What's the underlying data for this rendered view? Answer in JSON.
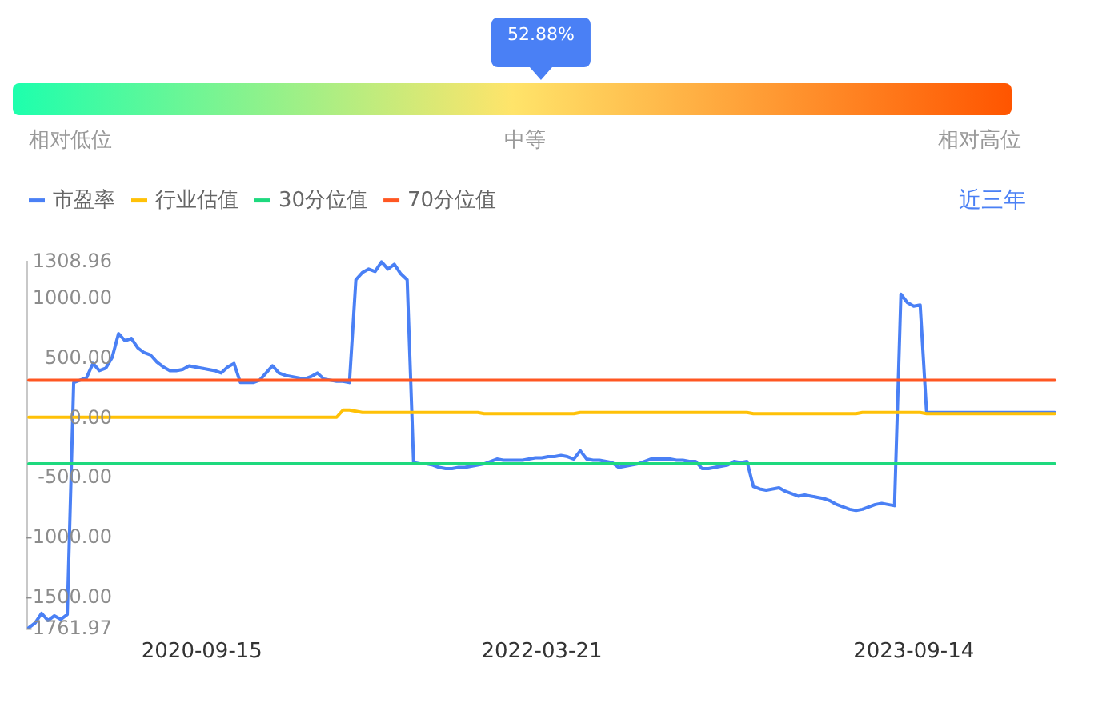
{
  "chart_data": [
    {
      "type": "other",
      "values": [
        52.88
      ],
      "value_labels": [
        "52.88%"
      ],
      "annotations": [
        "相对低位",
        "中等",
        "相对高位"
      ]
    },
    {
      "type": "line",
      "legend": "top left",
      "annotations": [
        "近三年"
      ],
      "ylim": [
        -1761.97,
        1308.96
      ],
      "yticks": [
        -1761.97,
        {
          "value": -1500,
          "label": "-1500.00"
        },
        {
          "value": -1000,
          "label": "-1000.00"
        },
        {
          "value": -500,
          "label": "-500.00"
        },
        {
          "value": 0,
          "label": "0.00"
        },
        {
          "value": 500,
          "label": "500.00"
        },
        {
          "value": 1000,
          "label": "1000.00"
        },
        1308.96
      ],
      "categories": [
        null,
        null,
        null,
        null,
        null,
        null,
        null,
        null,
        null,
        null,
        null,
        null,
        null,
        null,
        null,
        null,
        null,
        null,
        null,
        null,
        null,
        null,
        null,
        null,
        null,
        null,
        null,
        "2020-09-15",
        null,
        null,
        null,
        null,
        null,
        null,
        null,
        null,
        null,
        null,
        null,
        null,
        null,
        null,
        null,
        null,
        null,
        null,
        null,
        null,
        null,
        null,
        null,
        null,
        null,
        null,
        null,
        null,
        null,
        null,
        null,
        null,
        null,
        null,
        null,
        null,
        null,
        null,
        null,
        null,
        null,
        null,
        null,
        null,
        null,
        null,
        null,
        null,
        null,
        null,
        null,
        null,
        "2022-03-21",
        null,
        null,
        null,
        null,
        null,
        null,
        null,
        null,
        null,
        null,
        null,
        null,
        null,
        null,
        null,
        null,
        null,
        null,
        null,
        null,
        null,
        null,
        null,
        null,
        null,
        null,
        null,
        null,
        null,
        null,
        null,
        null,
        null,
        null,
        null,
        null,
        null,
        null,
        null,
        null,
        null,
        null,
        null,
        null,
        null,
        null,
        null,
        null,
        null,
        null,
        null,
        null,
        null,
        null,
        null,
        null,
        null,
        "2023-09-14",
        null,
        null,
        null,
        null,
        null,
        null,
        null,
        null,
        null,
        null,
        null,
        null,
        null,
        null,
        null,
        null,
        null,
        null,
        null,
        null,
        null,
        null
      ],
      "series": [
        {
          "name": "市盈率",
          "color": "#4a80f5",
          "values": [
            -1760,
            -1720,
            -1640,
            -1700,
            -1660,
            -1690,
            -1650,
            290,
            310,
            330,
            450,
            390,
            410,
            500,
            700,
            640,
            660,
            580,
            540,
            520,
            460,
            420,
            390,
            390,
            400,
            430,
            420,
            410,
            400,
            390,
            370,
            420,
            450,
            290,
            290,
            290,
            310,
            370,
            430,
            370,
            350,
            340,
            330,
            320,
            340,
            370,
            320,
            310,
            300,
            300,
            290,
            1150,
            1210,
            1240,
            1220,
            1300,
            1240,
            1280,
            1200,
            1150,
            -380,
            -390,
            -390,
            -400,
            -420,
            -430,
            -430,
            -420,
            -420,
            -410,
            -400,
            -390,
            -370,
            -350,
            -360,
            -360,
            -360,
            -360,
            -350,
            -340,
            -340,
            -330,
            -330,
            -320,
            -330,
            -350,
            -280,
            -350,
            -360,
            -360,
            -370,
            -380,
            -420,
            -410,
            -400,
            -390,
            -370,
            -350,
            -350,
            -350,
            -350,
            -360,
            -360,
            -370,
            -370,
            -430,
            -430,
            -420,
            -410,
            -400,
            -370,
            -380,
            -370,
            -580,
            -600,
            -610,
            -600,
            -590,
            -620,
            -640,
            -660,
            -650,
            -660,
            -670,
            -680,
            -700,
            -730,
            -750,
            -770,
            -780,
            -770,
            -750,
            -730,
            -720,
            -730,
            -740,
            1030,
            960,
            930,
            940,
            40,
            40,
            40,
            40,
            40,
            40,
            40,
            40,
            40,
            40,
            40,
            40,
            40,
            40,
            40,
            40,
            40,
            40,
            40,
            40,
            40
          ]
        },
        {
          "name": "行业估值",
          "color": "#ffc107",
          "values": [
            0,
            0,
            0,
            0,
            0,
            0,
            0,
            0,
            0,
            0,
            0,
            0,
            0,
            0,
            0,
            0,
            0,
            0,
            0,
            0,
            0,
            0,
            0,
            0,
            0,
            0,
            0,
            0,
            0,
            0,
            0,
            0,
            0,
            0,
            0,
            0,
            0,
            0,
            0,
            0,
            0,
            0,
            0,
            0,
            0,
            0,
            0,
            0,
            0,
            60,
            60,
            50,
            40,
            40,
            40,
            40,
            40,
            40,
            40,
            40,
            40,
            40,
            40,
            40,
            40,
            40,
            40,
            40,
            40,
            40,
            40,
            30,
            30,
            30,
            30,
            30,
            30,
            30,
            30,
            30,
            30,
            30,
            30,
            30,
            30,
            30,
            40,
            40,
            40,
            40,
            40,
            40,
            40,
            40,
            40,
            40,
            40,
            40,
            40,
            40,
            40,
            40,
            40,
            40,
            40,
            40,
            40,
            40,
            40,
            40,
            40,
            40,
            40,
            30,
            30,
            30,
            30,
            30,
            30,
            30,
            30,
            30,
            30,
            30,
            30,
            30,
            30,
            30,
            30,
            30,
            40,
            40,
            40,
            40,
            40,
            40,
            40,
            40,
            40,
            40,
            30,
            30,
            30,
            30,
            30,
            30,
            30,
            30,
            30,
            30,
            30,
            30,
            30,
            30,
            30,
            30,
            30,
            30,
            30,
            30,
            30
          ]
        },
        {
          "name": "30分位值",
          "color": "#1ed97e",
          "values": [
            -390,
            -390,
            -390,
            -390,
            -390,
            -390,
            -390,
            -390,
            -390,
            -390,
            -390,
            -390,
            -390,
            -390,
            -390,
            -390,
            -390,
            -390,
            -390,
            -390,
            -390,
            -390,
            -390,
            -390,
            -390,
            -390,
            -390,
            -390,
            -390,
            -390,
            -390,
            -390,
            -390,
            -390,
            -390,
            -390,
            -390,
            -390,
            -390,
            -390,
            -390,
            -390,
            -390,
            -390,
            -390,
            -390,
            -390,
            -390,
            -390,
            -390,
            -390,
            -390,
            -390,
            -390,
            -390,
            -390,
            -390,
            -390,
            -390,
            -390,
            -390,
            -390,
            -390,
            -390,
            -390,
            -390,
            -390,
            -390,
            -390,
            -390,
            -390,
            -390,
            -390,
            -390,
            -390,
            -390,
            -390,
            -390,
            -390,
            -390,
            -390,
            -390,
            -390,
            -390,
            -390,
            -390,
            -390,
            -390,
            -390,
            -390,
            -390,
            -390,
            -390,
            -390,
            -390,
            -390,
            -390,
            -390,
            -390,
            -390,
            -390,
            -390,
            -390,
            -390,
            -390,
            -390,
            -390,
            -390,
            -390,
            -390,
            -390,
            -390,
            -390,
            -390,
            -390,
            -390,
            -390,
            -390,
            -390,
            -390,
            -390,
            -390,
            -390,
            -390,
            -390,
            -390,
            -390,
            -390,
            -390,
            -390,
            -390,
            -390,
            -390,
            -390,
            -390,
            -390,
            -390,
            -390,
            -390,
            -390,
            -390,
            -390,
            -390,
            -390,
            -390,
            -390,
            -390,
            -390,
            -390,
            -390,
            -390,
            -390,
            -390,
            -390,
            -390,
            -390,
            -390,
            -390,
            -390,
            -390,
            -390
          ]
        },
        {
          "name": "70分位值",
          "color": "#ff5722",
          "values": [
            310,
            310,
            310,
            310,
            310,
            310,
            310,
            310,
            310,
            310,
            310,
            310,
            310,
            310,
            310,
            310,
            310,
            310,
            310,
            310,
            310,
            310,
            310,
            310,
            310,
            310,
            310,
            310,
            310,
            310,
            310,
            310,
            310,
            310,
            310,
            310,
            310,
            310,
            310,
            310,
            310,
            310,
            310,
            310,
            310,
            310,
            310,
            310,
            310,
            310,
            310,
            310,
            310,
            310,
            310,
            310,
            310,
            310,
            310,
            310,
            310,
            310,
            310,
            310,
            310,
            310,
            310,
            310,
            310,
            310,
            310,
            310,
            310,
            310,
            310,
            310,
            310,
            310,
            310,
            310,
            310,
            310,
            310,
            310,
            310,
            310,
            310,
            310,
            310,
            310,
            310,
            310,
            310,
            310,
            310,
            310,
            310,
            310,
            310,
            310,
            310,
            310,
            310,
            310,
            310,
            310,
            310,
            310,
            310,
            310,
            310,
            310,
            310,
            310,
            310,
            310,
            310,
            310,
            310,
            310,
            310,
            310,
            310,
            310,
            310,
            310,
            310,
            310,
            310,
            310,
            310,
            310,
            310,
            310,
            310,
            310,
            310,
            310,
            310,
            310,
            310,
            310,
            310,
            310,
            310,
            310,
            310,
            310,
            310,
            310,
            310,
            310,
            310,
            310,
            310,
            310,
            310,
            310,
            310,
            310,
            310
          ]
        }
      ]
    }
  ]
}
